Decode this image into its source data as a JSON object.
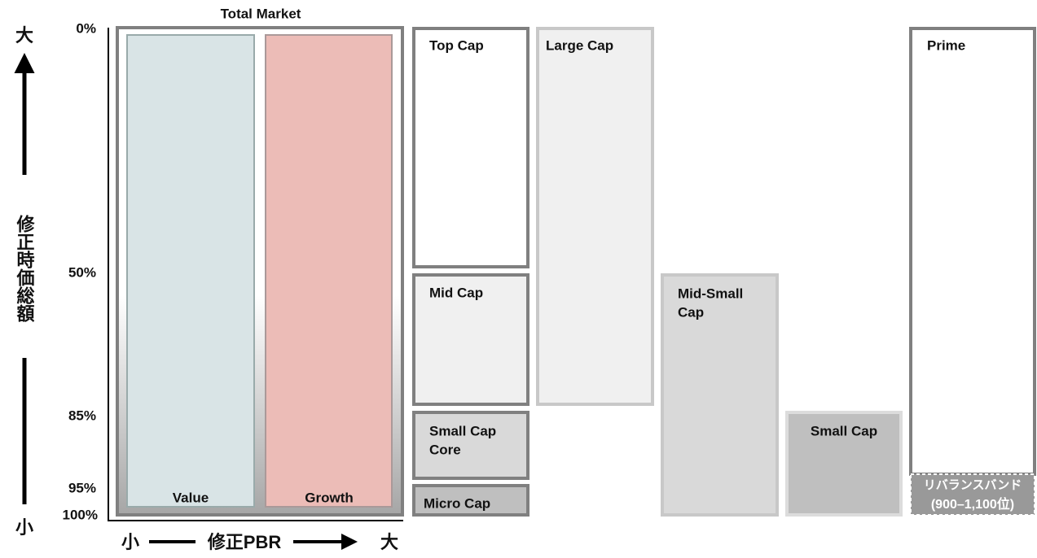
{
  "axis": {
    "y_top": "大",
    "y_bottom": "小",
    "y_title": "修正時価総額",
    "x_left": "小",
    "x_right": "大",
    "x_title": "修正PBR",
    "ticks": [
      "0%",
      "50%",
      "85%",
      "95%",
      "100%"
    ]
  },
  "total_market": {
    "title": "Total Market",
    "value": "Value",
    "growth": "Growth"
  },
  "boxes": {
    "top_cap": "Top Cap",
    "mid_cap": "Mid Cap",
    "small_cap_core": [
      "Small Cap",
      "Core"
    ],
    "micro_cap": "Micro Cap",
    "large_cap": "Large Cap",
    "mid_small_cap": [
      "Mid-Small",
      "Cap"
    ],
    "small_cap": "Small Cap",
    "prime": "Prime",
    "rebalance_band": [
      "リバランスバンド",
      "(900–1,100位)"
    ]
  }
}
